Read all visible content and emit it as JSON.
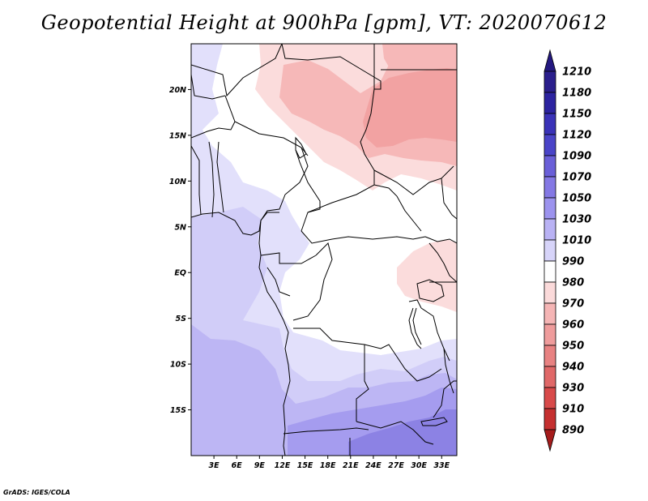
{
  "title": "Geopotential Height at 900hPa [gpm], VT: 2020070612",
  "credit": "GrADS: IGES/COLA",
  "map": {
    "variable": "Geopotential Height",
    "level": "900hPa",
    "units": "gpm",
    "valid_time": "2020070612",
    "lon_range": [
      0,
      35
    ],
    "lat_range": [
      -20,
      25
    ],
    "lat_ticks": [
      {
        "value": 20,
        "label": "20N"
      },
      {
        "value": 15,
        "label": "15N"
      },
      {
        "value": 10,
        "label": "10N"
      },
      {
        "value": 5,
        "label": "5N"
      },
      {
        "value": 0,
        "label": "EQ"
      },
      {
        "value": -5,
        "label": "5S"
      },
      {
        "value": -10,
        "label": "10S"
      },
      {
        "value": -15,
        "label": "15S"
      }
    ],
    "lon_ticks": [
      {
        "value": 3,
        "label": "3E"
      },
      {
        "value": 6,
        "label": "6E"
      },
      {
        "value": 9,
        "label": "9E"
      },
      {
        "value": 12,
        "label": "12E"
      },
      {
        "value": 15,
        "label": "15E"
      },
      {
        "value": 18,
        "label": "18E"
      },
      {
        "value": 21,
        "label": "21E"
      },
      {
        "value": 24,
        "label": "24E"
      },
      {
        "value": 27,
        "label": "27E"
      },
      {
        "value": 30,
        "label": "30E"
      },
      {
        "value": 33,
        "label": "33E"
      }
    ]
  },
  "colorbar": {
    "levels": [
      {
        "label": "1210",
        "color": "#2a1e8c"
      },
      {
        "label": "1180",
        "color": "#2c23a0"
      },
      {
        "label": "1150",
        "color": "#3a32b8"
      },
      {
        "label": "1120",
        "color": "#4a44c8"
      },
      {
        "label": "1090",
        "color": "#6a5fd8"
      },
      {
        "label": "1070",
        "color": "#8478e4"
      },
      {
        "label": "1050",
        "color": "#9c93ee"
      },
      {
        "label": "1030",
        "color": "#b9b2f4"
      },
      {
        "label": "1010",
        "color": "#d7d4f9"
      },
      {
        "label": "990",
        "color": "#ffffff"
      },
      {
        "label": "980",
        "color": "#fbdada"
      },
      {
        "label": "970",
        "color": "#f5b5b5"
      },
      {
        "label": "960",
        "color": "#ef9c9c"
      },
      {
        "label": "950",
        "color": "#e88282"
      },
      {
        "label": "940",
        "color": "#e06868"
      },
      {
        "label": "930",
        "color": "#d84a4a"
      },
      {
        "label": "910",
        "color": "#c53030"
      },
      {
        "label": "890",
        "color": "#b22222"
      }
    ],
    "top_arrow_color": "#241880",
    "bottom_arrow_color": "#a51c1c"
  },
  "field_colors": {
    "land_white": "#ffffff",
    "blue_1": "#e2e0fb",
    "blue_2": "#d1cdf8",
    "blue_3": "#bdb6f4",
    "blue_4": "#a59cef",
    "blue_5": "#8c82e4",
    "pink_1": "#fbdcdc",
    "pink_2": "#f6b8b8",
    "pink_3": "#f2a2a2",
    "pink_4": "#ec8e8e",
    "border_color": "#000000"
  }
}
